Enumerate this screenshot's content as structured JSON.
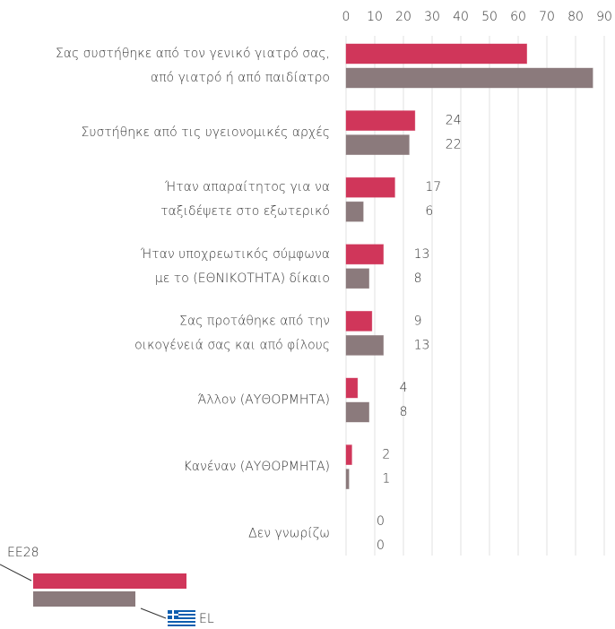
{
  "chart_data": {
    "type": "hbar",
    "categories": [
      [
        "Σας συστήθηκε από τον γενικό γιατρό σας,",
        "από γιατρό ή από παιδίατρο"
      ],
      [
        "Συστήθηκε από τις υγειονομικές αρχές"
      ],
      [
        "Ήταν απαραίτητος για να",
        "ταξιδέψετε στο εξωτερικό"
      ],
      [
        "Ήταν υποχρεωτικός σύμφωνα",
        "με το (ΕΘΝΙΚΟΤΗΤΑ) δίκαιο"
      ],
      [
        "Σας προτάθηκε από την",
        "οικογένειά σας και από φίλους"
      ],
      [
        "Άλλον (ΑΥΘΟΡΜΗΤΑ)"
      ],
      [
        "Κανέναν (ΑΥΘΟΡΜΗΤΑ)"
      ],
      [
        "Δεν γνωρίζω"
      ]
    ],
    "series": [
      {
        "name": "EE28",
        "color": "#d0365a",
        "values": [
          63,
          24,
          17,
          13,
          9,
          4,
          2,
          0
        ]
      },
      {
        "name": "EL",
        "color": "#8b7a7c",
        "values": [
          86,
          22,
          6,
          8,
          13,
          8,
          1,
          0
        ]
      }
    ],
    "xlim": [
      0,
      90
    ],
    "xticks": [
      0,
      10,
      20,
      30,
      40,
      50,
      60,
      70,
      80,
      90
    ],
    "grid": true
  }
}
